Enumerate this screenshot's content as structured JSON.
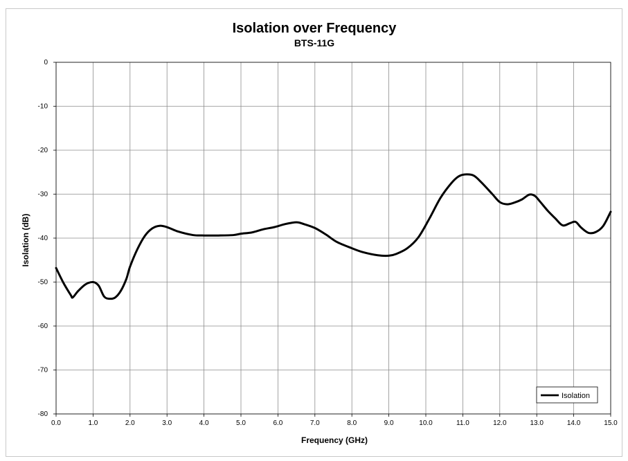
{
  "chart_data": {
    "type": "line",
    "title": "Isolation over Frequency",
    "subtitle": "BTS-11G",
    "xlabel": "Frequency (GHz)",
    "ylabel": "Isolation (dB)",
    "xlim": [
      0,
      15
    ],
    "ylim": [
      -80,
      0
    ],
    "x_ticks": [
      0,
      1,
      2,
      3,
      4,
      5,
      6,
      7,
      8,
      9,
      10,
      11,
      12,
      13,
      14,
      15
    ],
    "x_tick_labels": [
      "0.0",
      "1.0",
      "2.0",
      "3.0",
      "4.0",
      "5.0",
      "6.0",
      "7.0",
      "8.0",
      "9.0",
      "10.0",
      "11.0",
      "12.0",
      "13.0",
      "14.0",
      "15.0"
    ],
    "y_ticks": [
      0,
      -10,
      -20,
      -30,
      -40,
      -50,
      -60,
      -70,
      -80
    ],
    "y_tick_labels": [
      "0",
      "-10",
      "-20",
      "-30",
      "-40",
      "-50",
      "-60",
      "-70",
      "-80"
    ],
    "grid": true,
    "legend_position": "bottom-right",
    "series": [
      {
        "name": "Isolation",
        "color": "#000000",
        "x": [
          0.0,
          0.2,
          0.4,
          0.45,
          0.6,
          0.8,
          1.0,
          1.15,
          1.3,
          1.45,
          1.6,
          1.75,
          1.9,
          2.0,
          2.2,
          2.4,
          2.6,
          2.8,
          3.0,
          3.3,
          3.7,
          4.0,
          4.4,
          4.8,
          5.0,
          5.3,
          5.6,
          5.9,
          6.2,
          6.5,
          6.7,
          7.0,
          7.3,
          7.6,
          8.0,
          8.3,
          8.7,
          9.0,
          9.2,
          9.5,
          9.8,
          10.1,
          10.4,
          10.7,
          10.9,
          11.1,
          11.3,
          11.5,
          11.8,
          12.0,
          12.2,
          12.4,
          12.6,
          12.8,
          12.95,
          13.1,
          13.3,
          13.5,
          13.7,
          13.9,
          14.05,
          14.2,
          14.4,
          14.6,
          14.8,
          15.0
        ],
        "y": [
          -46.8,
          -50.2,
          -53.0,
          -53.5,
          -52.0,
          -50.5,
          -50.0,
          -50.8,
          -53.3,
          -53.8,
          -53.5,
          -52.0,
          -49.3,
          -46.5,
          -42.5,
          -39.5,
          -37.8,
          -37.2,
          -37.5,
          -38.5,
          -39.3,
          -39.4,
          -39.4,
          -39.3,
          -39.0,
          -38.7,
          -38.0,
          -37.5,
          -36.8,
          -36.4,
          -36.8,
          -37.7,
          -39.2,
          -40.9,
          -42.3,
          -43.2,
          -43.9,
          -44.0,
          -43.6,
          -42.3,
          -39.8,
          -35.5,
          -30.8,
          -27.4,
          -25.9,
          -25.5,
          -25.8,
          -27.3,
          -30.0,
          -31.8,
          -32.3,
          -31.9,
          -31.2,
          -30.1,
          -30.4,
          -31.8,
          -33.8,
          -35.5,
          -37.1,
          -36.6,
          -36.3,
          -37.6,
          -38.8,
          -38.6,
          -37.2,
          -34.0
        ]
      }
    ]
  }
}
